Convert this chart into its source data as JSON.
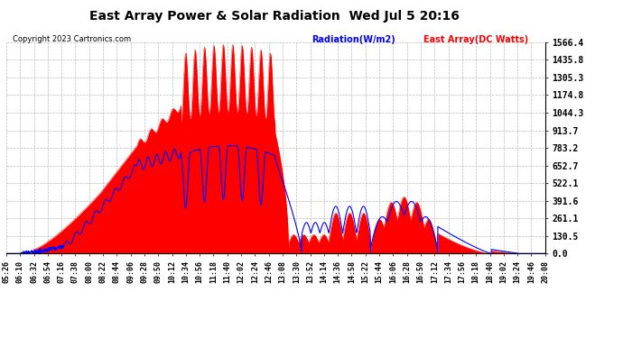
{
  "title": "East Array Power & Solar Radiation  Wed Jul 5 20:16",
  "copyright": "Copyright 2023 Cartronics.com",
  "legend_radiation": "Radiation(W/m2)",
  "legend_east_array": "East Array(DC Watts)",
  "y_max": 1566.4,
  "y_ticks": [
    0.0,
    130.5,
    261.1,
    391.6,
    522.1,
    652.7,
    783.2,
    913.7,
    1044.3,
    1174.8,
    1305.3,
    1435.8,
    1566.4
  ],
  "background_color": "#ffffff",
  "plot_bg_color": "#ffffff",
  "grid_color": "#aaaaaa",
  "radiation_color": "#0000ff",
  "array_color": "#ff0000",
  "title_color": "#000000",
  "copyright_color": "#000000",
  "x_tick_labels": [
    "05:26",
    "06:10",
    "06:32",
    "06:54",
    "07:16",
    "07:38",
    "08:00",
    "08:22",
    "08:44",
    "09:06",
    "09:28",
    "09:50",
    "10:12",
    "10:34",
    "10:56",
    "11:18",
    "11:40",
    "12:02",
    "12:24",
    "12:46",
    "13:08",
    "13:30",
    "13:52",
    "14:14",
    "14:36",
    "14:58",
    "15:22",
    "15:44",
    "16:06",
    "16:28",
    "16:50",
    "17:12",
    "17:34",
    "17:56",
    "18:18",
    "18:40",
    "19:02",
    "19:24",
    "19:46",
    "20:08"
  ]
}
